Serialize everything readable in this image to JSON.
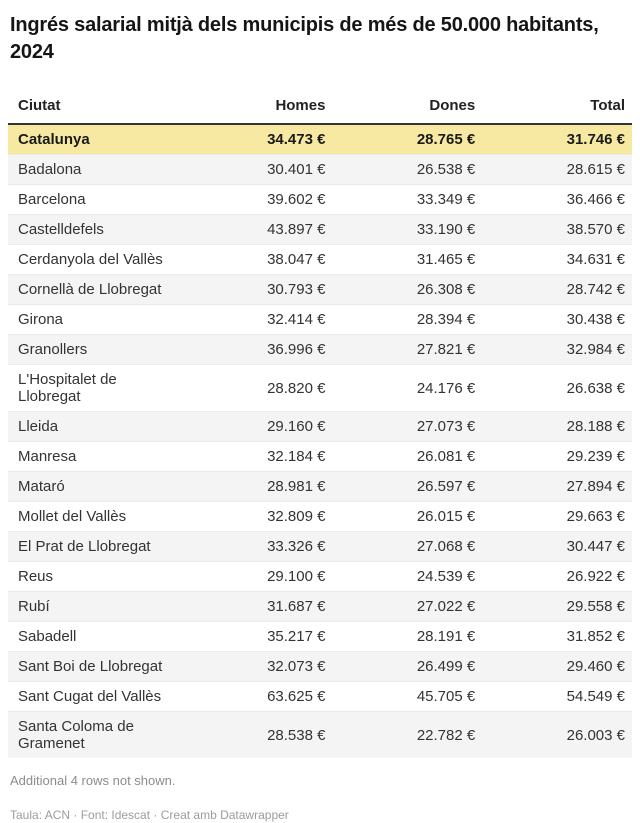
{
  "chart_data": {
    "type": "table",
    "title": "Ingrés salarial mitjà dels municipis de més de 50.000 habitants, 2024",
    "columns": [
      "Ciutat",
      "Homes",
      "Dones",
      "Total"
    ],
    "rows": [
      {
        "ciutat": "Catalunya",
        "homes": "34.473 €",
        "dones": "28.765 €",
        "total": "31.746 €",
        "highlight": true
      },
      {
        "ciutat": "Badalona",
        "homes": "30.401 €",
        "dones": "26.538 €",
        "total": "28.615 €"
      },
      {
        "ciutat": "Barcelona",
        "homes": "39.602 €",
        "dones": "33.349 €",
        "total": "36.466 €"
      },
      {
        "ciutat": "Castelldefels",
        "homes": "43.897 €",
        "dones": "33.190 €",
        "total": "38.570 €"
      },
      {
        "ciutat": "Cerdanyola del Vallès",
        "homes": "38.047 €",
        "dones": "31.465 €",
        "total": "34.631 €"
      },
      {
        "ciutat": "Cornellà de Llobregat",
        "homes": "30.793 €",
        "dones": "26.308 €",
        "total": "28.742 €"
      },
      {
        "ciutat": "Girona",
        "homes": "32.414 €",
        "dones": "28.394 €",
        "total": "30.438 €"
      },
      {
        "ciutat": "Granollers",
        "homes": "36.996 €",
        "dones": "27.821 €",
        "total": "32.984 €"
      },
      {
        "ciutat": "L'Hospitalet de Llobregat",
        "homes": "28.820 €",
        "dones": "24.176 €",
        "total": "26.638 €"
      },
      {
        "ciutat": "Lleida",
        "homes": "29.160 €",
        "dones": "27.073 €",
        "total": "28.188 €"
      },
      {
        "ciutat": "Manresa",
        "homes": "32.184 €",
        "dones": "26.081 €",
        "total": "29.239 €"
      },
      {
        "ciutat": "Mataró",
        "homes": "28.981 €",
        "dones": "26.597 €",
        "total": "27.894 €"
      },
      {
        "ciutat": "Mollet del Vallès",
        "homes": "32.809 €",
        "dones": "26.015 €",
        "total": "29.663 €"
      },
      {
        "ciutat": "El Prat de Llobregat",
        "homes": "33.326 €",
        "dones": "27.068 €",
        "total": "30.447 €"
      },
      {
        "ciutat": "Reus",
        "homes": "29.100 €",
        "dones": "24.539 €",
        "total": "26.922 €"
      },
      {
        "ciutat": "Rubí",
        "homes": "31.687 €",
        "dones": "27.022 €",
        "total": "29.558 €"
      },
      {
        "ciutat": "Sabadell",
        "homes": "35.217 €",
        "dones": "28.191 €",
        "total": "31.852 €"
      },
      {
        "ciutat": "Sant Boi de Llobregat",
        "homes": "32.073 €",
        "dones": "26.499 €",
        "total": "29.460 €"
      },
      {
        "ciutat": "Sant Cugat del Vallès",
        "homes": "63.625 €",
        "dones": "45.705 €",
        "total": "54.549 €"
      },
      {
        "ciutat": "Santa Coloma de Gramenet",
        "homes": "28.538 €",
        "dones": "22.782 €",
        "total": "26.003 €"
      }
    ],
    "note": "Additional 4 rows not shown.",
    "footer": "Taula: ACN · Font: Idescat · Creat amb Datawrapper",
    "layout": {
      "highlight_row": "Catalunya",
      "zebra_striping": true
    }
  },
  "colors": {
    "highlight": "#F7E9A1",
    "stripe": "#F4F4F4",
    "header_rule": "#333333",
    "text": "#333333"
  }
}
